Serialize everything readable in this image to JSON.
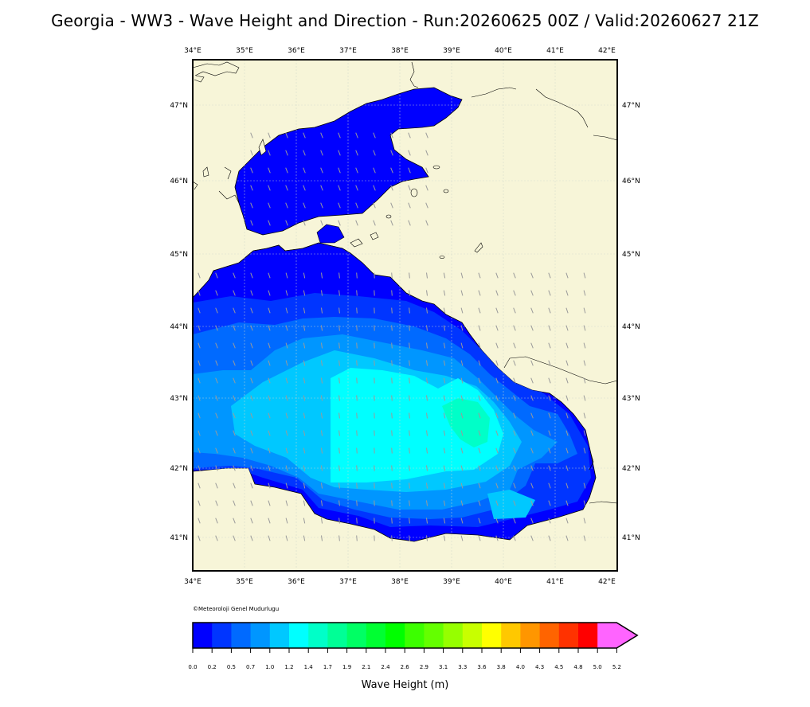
{
  "title": "Georgia - WW3 - Wave Height and Direction - Run:20260625 00Z / Valid:20260627 21Z",
  "credit": "©Meteoroloji Genel Mudurlugu",
  "map": {
    "lon_labels": [
      "34°E",
      "35°E",
      "36°E",
      "37°E",
      "38°E",
      "39°E",
      "40°E",
      "41°E",
      "42°E"
    ],
    "lat_labels": [
      "47°N",
      "46°N",
      "45°N",
      "44°N",
      "43°N",
      "42°N",
      "41°N"
    ],
    "land_color": "#f7f5d8",
    "sea_base_color": "#0000ff"
  },
  "colorbar": {
    "label": "Wave Height (m)",
    "ticks": [
      "0.0",
      "0.2",
      "0.5",
      "0.7",
      "1.0",
      "1.2",
      "1.4",
      "1.7",
      "1.9",
      "2.1",
      "2.4",
      "2.6",
      "2.9",
      "3.1",
      "3.3",
      "3.6",
      "3.8",
      "4.0",
      "4.3",
      "4.5",
      "4.8",
      "5.0",
      "5.2"
    ],
    "colors": [
      "#0000ff",
      "#0035ff",
      "#006aff",
      "#0096ff",
      "#00c8ff",
      "#00ffff",
      "#00ffc8",
      "#00ff96",
      "#00ff64",
      "#00ff32",
      "#00ff00",
      "#3cff00",
      "#64ff00",
      "#96ff00",
      "#c8ff00",
      "#ffff00",
      "#ffc800",
      "#ff9600",
      "#ff6400",
      "#ff3200",
      "#ff0000",
      "#ff64ff"
    ]
  }
}
